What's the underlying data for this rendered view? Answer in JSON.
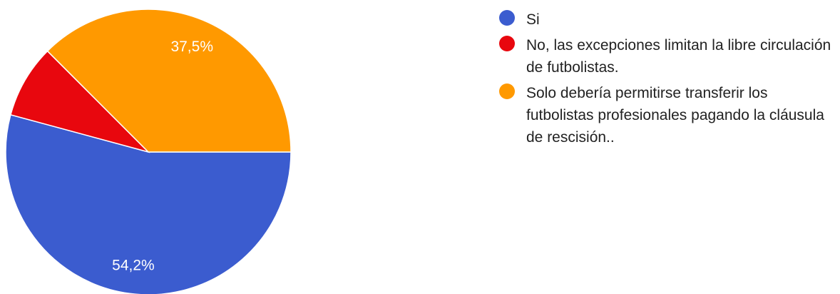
{
  "chart_data": {
    "type": "pie",
    "categories": [
      "Si",
      "No, las excepciones limitan la libre circulación de futbolistas.",
      "Solo debería permitirse transferir los futbolistas profesionales pagando la cláusula de rescisión.."
    ],
    "values": [
      54.2,
      8.3,
      37.5
    ],
    "data_labels": [
      "54,2%",
      "",
      "37,5%"
    ],
    "colors": [
      "#3b5ccf",
      "#e8070e",
      "#ff9900"
    ],
    "legend_position": "right"
  }
}
